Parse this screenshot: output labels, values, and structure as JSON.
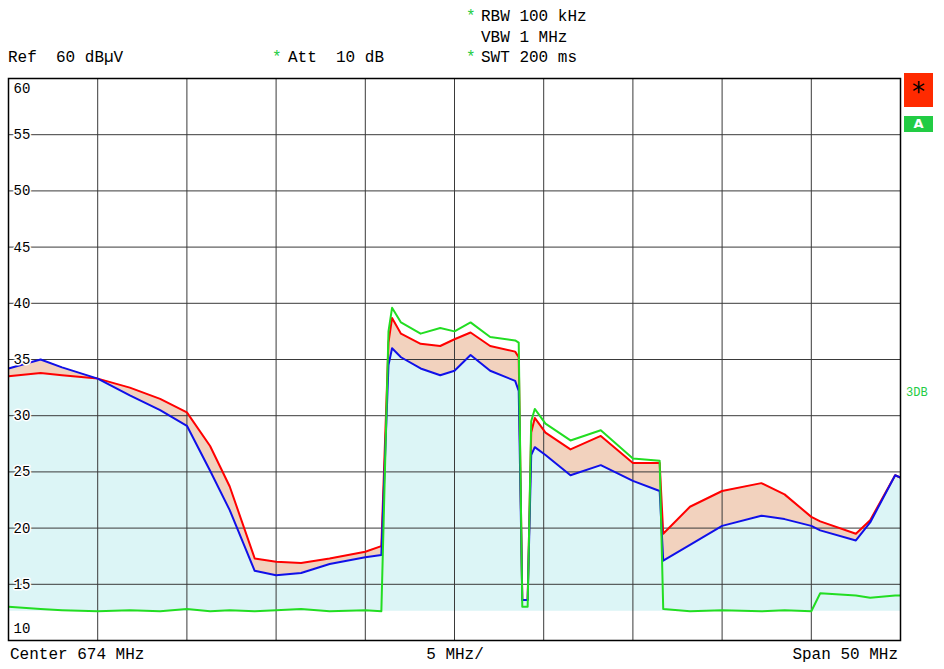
{
  "chart_data": {
    "type": "line",
    "header": {
      "ref": "Ref  60 dBµV",
      "att": {
        "mark": "*",
        "text": "Att  10 dB"
      },
      "rbw": {
        "mark": "*",
        "text": "RBW 100 kHz"
      },
      "vbw": {
        "text": "VBW 1 MHz"
      },
      "swt": {
        "mark": "*",
        "text": "SWT 200 ms"
      }
    },
    "footer": {
      "center": "Center 674 MHz",
      "div": "5 MHz/",
      "span": "Span 50 MHz"
    },
    "trace_label": "3DB",
    "indicators": [
      "*",
      "A"
    ],
    "x": [
      649,
      650.8,
      652,
      654,
      655.8,
      657.5,
      659,
      660.3,
      661.4,
      662.8,
      664,
      665.4,
      667,
      669,
      669.9,
      670.3,
      670.5,
      671,
      672.1,
      673.2,
      674,
      674.9,
      676,
      677.4,
      677.6,
      677.8,
      678.1,
      678.3,
      678.5,
      679.1,
      680.5,
      682.2,
      684,
      685.5,
      685.7,
      687.2,
      689,
      691.2,
      692.5,
      694,
      694.5,
      696.5,
      697.3,
      698.7,
      699
    ],
    "series": [
      {
        "color": "#ff0000",
        "values": [
          33.5,
          33.8,
          33.6,
          33.3,
          32.5,
          31.5,
          30.3,
          27.3,
          23.7,
          17.3,
          17.0,
          16.9,
          17.3,
          17.9,
          18.4,
          36.5,
          38.7,
          37.3,
          36.4,
          36.2,
          36.8,
          37.4,
          36.2,
          35.7,
          35.2,
          13.6,
          13.6,
          28.5,
          29.8,
          28.5,
          27.0,
          28.2,
          25.8,
          25.8,
          19.5,
          21.9,
          23.3,
          24.0,
          23.0,
          21.0,
          20.6,
          19.5,
          20.7,
          24.7,
          24.5
        ]
      },
      {
        "color": "#1010e8",
        "values": [
          34.2,
          35.0,
          34.3,
          33.3,
          31.8,
          30.5,
          29.1,
          25.1,
          21.6,
          16.2,
          15.8,
          16.0,
          16.8,
          17.4,
          17.6,
          34.5,
          36.0,
          35.2,
          34.2,
          33.6,
          34.0,
          35.4,
          34.0,
          33.1,
          32.2,
          13.6,
          13.6,
          26.5,
          27.2,
          26.5,
          24.7,
          25.6,
          24.2,
          23.3,
          17.1,
          18.5,
          20.2,
          21.1,
          20.8,
          20.2,
          19.8,
          18.9,
          20.5,
          24.7,
          24.5
        ]
      },
      {
        "color": "#22dd22",
        "values": [
          13.0,
          12.8,
          12.7,
          12.6,
          12.7,
          12.6,
          12.8,
          12.6,
          12.7,
          12.6,
          12.7,
          12.8,
          12.6,
          12.7,
          12.6,
          37.5,
          39.6,
          38.3,
          37.3,
          37.8,
          37.5,
          38.3,
          37.0,
          36.7,
          36.5,
          13.0,
          13.0,
          29.5,
          30.6,
          29.3,
          27.8,
          28.7,
          26.2,
          26.0,
          12.8,
          12.6,
          12.7,
          12.6,
          12.7,
          12.6,
          14.2,
          14.0,
          13.8,
          14.0,
          14.0
        ]
      }
    ],
    "xlim": [
      649,
      699
    ],
    "xticks": [
      649,
      654,
      659,
      664,
      669,
      674,
      679,
      684,
      689,
      694,
      699
    ],
    "ylim": [
      10,
      60
    ],
    "yticks": [
      10,
      15,
      20,
      25,
      30,
      35,
      40,
      45,
      50,
      55,
      60
    ],
    "grid": true,
    "tick_labels": "y"
  }
}
